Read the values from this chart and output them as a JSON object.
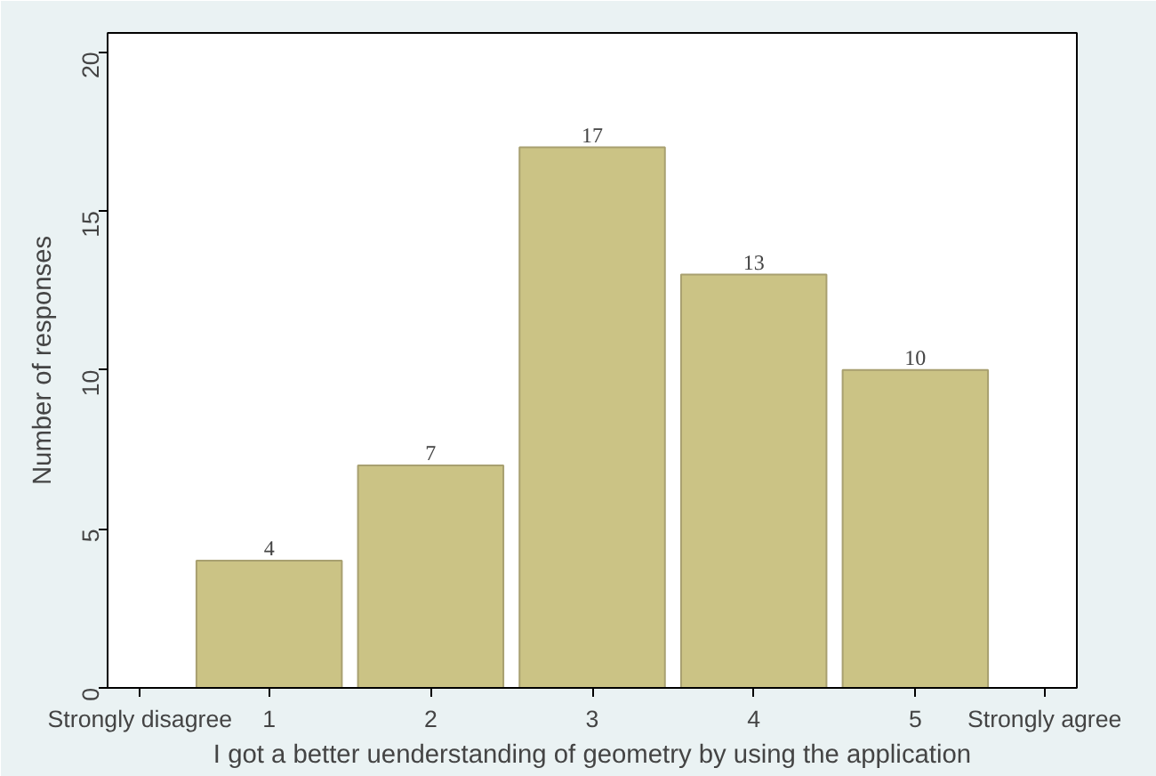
{
  "chart_data": {
    "type": "bar",
    "xlabel": "I got a better uenderstanding of geometry by using the application",
    "ylabel": "Number of responses",
    "x": [
      1,
      2,
      3,
      4,
      5
    ],
    "values": [
      4,
      7,
      17,
      13,
      10
    ],
    "color": "#cbc385",
    "xlim": [
      0,
      6
    ],
    "xticks": [
      {
        "value": 0.2,
        "label": "Strongly disagree"
      },
      1,
      2,
      3,
      4,
      5,
      {
        "value": 5.8,
        "label": "Strongly agree"
      }
    ],
    "ylim": [
      0,
      20.6
    ],
    "yticks": [
      0,
      5,
      10,
      15,
      20
    ],
    "data_labels": true,
    "grid": false
  }
}
